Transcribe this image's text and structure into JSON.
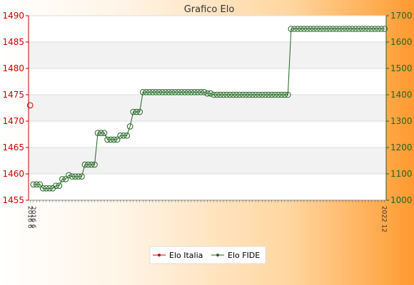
{
  "chart_data": {
    "type": "line",
    "title": "Grafico Elo",
    "y_left": {
      "min": 1455,
      "max": 1490,
      "ticks": [
        1455,
        1460,
        1465,
        1470,
        1475,
        1480,
        1485,
        1490
      ]
    },
    "y_right": {
      "min": 1000,
      "max": 1700,
      "ticks": [
        1000,
        1100,
        1200,
        1300,
        1400,
        1500,
        1600,
        1700
      ]
    },
    "series": [
      {
        "name": "Elo Italia",
        "color": "#cc0000",
        "axis": "left",
        "points": [
          {
            "i": 0,
            "y": 1473
          }
        ]
      },
      {
        "name": "Elo FIDE",
        "color": "#226622",
        "axis": "right",
        "points": [
          {
            "i": 1,
            "y": 1060
          },
          {
            "i": 2,
            "y": 1060
          },
          {
            "i": 3,
            "y": 1060
          },
          {
            "i": 4,
            "y": 1045
          },
          {
            "i": 5,
            "y": 1045
          },
          {
            "i": 6,
            "y": 1045
          },
          {
            "i": 7,
            "y": 1045
          },
          {
            "i": 8,
            "y": 1055
          },
          {
            "i": 9,
            "y": 1055
          },
          {
            "i": 10,
            "y": 1080
          },
          {
            "i": 11,
            "y": 1080
          },
          {
            "i": 12,
            "y": 1095
          },
          {
            "i": 13,
            "y": 1090
          },
          {
            "i": 14,
            "y": 1090
          },
          {
            "i": 15,
            "y": 1090
          },
          {
            "i": 16,
            "y": 1090
          },
          {
            "i": 17,
            "y": 1135
          },
          {
            "i": 18,
            "y": 1135
          },
          {
            "i": 19,
            "y": 1135
          },
          {
            "i": 20,
            "y": 1135
          },
          {
            "i": 21,
            "y": 1255
          },
          {
            "i": 22,
            "y": 1255
          },
          {
            "i": 23,
            "y": 1255
          },
          {
            "i": 24,
            "y": 1230
          },
          {
            "i": 25,
            "y": 1230
          },
          {
            "i": 26,
            "y": 1230
          },
          {
            "i": 27,
            "y": 1230
          },
          {
            "i": 28,
            "y": 1245
          },
          {
            "i": 29,
            "y": 1245
          },
          {
            "i": 30,
            "y": 1245
          },
          {
            "i": 31,
            "y": 1280
          },
          {
            "i": 32,
            "y": 1335
          },
          {
            "i": 33,
            "y": 1335
          },
          {
            "i": 34,
            "y": 1335
          },
          {
            "i": 35,
            "y": 1410
          },
          {
            "i": 36,
            "y": 1410
          },
          {
            "i": 37,
            "y": 1410
          },
          {
            "i": 38,
            "y": 1410
          },
          {
            "i": 39,
            "y": 1410
          },
          {
            "i": 40,
            "y": 1410
          },
          {
            "i": 41,
            "y": 1410
          },
          {
            "i": 42,
            "y": 1410
          },
          {
            "i": 43,
            "y": 1410
          },
          {
            "i": 44,
            "y": 1410
          },
          {
            "i": 45,
            "y": 1410
          },
          {
            "i": 46,
            "y": 1410
          },
          {
            "i": 47,
            "y": 1410
          },
          {
            "i": 48,
            "y": 1410
          },
          {
            "i": 49,
            "y": 1410
          },
          {
            "i": 50,
            "y": 1410
          },
          {
            "i": 51,
            "y": 1410
          },
          {
            "i": 52,
            "y": 1410
          },
          {
            "i": 53,
            "y": 1410
          },
          {
            "i": 54,
            "y": 1410
          },
          {
            "i": 55,
            "y": 1405
          },
          {
            "i": 56,
            "y": 1405
          },
          {
            "i": 57,
            "y": 1400
          },
          {
            "i": 58,
            "y": 1400
          },
          {
            "i": 59,
            "y": 1400
          },
          {
            "i": 60,
            "y": 1400
          },
          {
            "i": 61,
            "y": 1400
          },
          {
            "i": 62,
            "y": 1400
          },
          {
            "i": 63,
            "y": 1400
          },
          {
            "i": 64,
            "y": 1400
          },
          {
            "i": 65,
            "y": 1400
          },
          {
            "i": 66,
            "y": 1400
          },
          {
            "i": 67,
            "y": 1400
          },
          {
            "i": 68,
            "y": 1400
          },
          {
            "i": 69,
            "y": 1400
          },
          {
            "i": 70,
            "y": 1400
          },
          {
            "i": 71,
            "y": 1400
          },
          {
            "i": 72,
            "y": 1400
          },
          {
            "i": 73,
            "y": 1400
          },
          {
            "i": 74,
            "y": 1400
          },
          {
            "i": 75,
            "y": 1400
          },
          {
            "i": 76,
            "y": 1400
          },
          {
            "i": 77,
            "y": 1400
          },
          {
            "i": 78,
            "y": 1400
          },
          {
            "i": 79,
            "y": 1400
          },
          {
            "i": 80,
            "y": 1400
          },
          {
            "i": 81,
            "y": 1650
          },
          {
            "i": 82,
            "y": 1650
          },
          {
            "i": 83,
            "y": 1650
          },
          {
            "i": 84,
            "y": 1650
          },
          {
            "i": 85,
            "y": 1650
          },
          {
            "i": 86,
            "y": 1650
          },
          {
            "i": 87,
            "y": 1650
          },
          {
            "i": 88,
            "y": 1650
          },
          {
            "i": 89,
            "y": 1650
          },
          {
            "i": 90,
            "y": 1650
          },
          {
            "i": 91,
            "y": 1650
          },
          {
            "i": 92,
            "y": 1650
          },
          {
            "i": 93,
            "y": 1650
          },
          {
            "i": 94,
            "y": 1650
          },
          {
            "i": 95,
            "y": 1650
          },
          {
            "i": 96,
            "y": 1650
          },
          {
            "i": 97,
            "y": 1650
          },
          {
            "i": 98,
            "y": 1650
          },
          {
            "i": 99,
            "y": 1650
          },
          {
            "i": 100,
            "y": 1650
          },
          {
            "i": 101,
            "y": 1650
          },
          {
            "i": 102,
            "y": 1650
          },
          {
            "i": 103,
            "y": 1650
          },
          {
            "i": 104,
            "y": 1650
          },
          {
            "i": 105,
            "y": 1650
          },
          {
            "i": 106,
            "y": 1650
          },
          {
            "i": 107,
            "y": 1650
          },
          {
            "i": 108,
            "y": 1650
          },
          {
            "i": 109,
            "y": 1650
          },
          {
            "i": 110,
            "y": 1650
          }
        ]
      }
    ],
    "x_count": 111,
    "x_labels": [
      {
        "i": 0,
        "label": "2016 6"
      },
      {
        "i": 1,
        "label": "2016 6"
      },
      {
        "i": 110,
        "label": "2022 12"
      }
    ],
    "grid": true,
    "legend_position": "bottom"
  }
}
